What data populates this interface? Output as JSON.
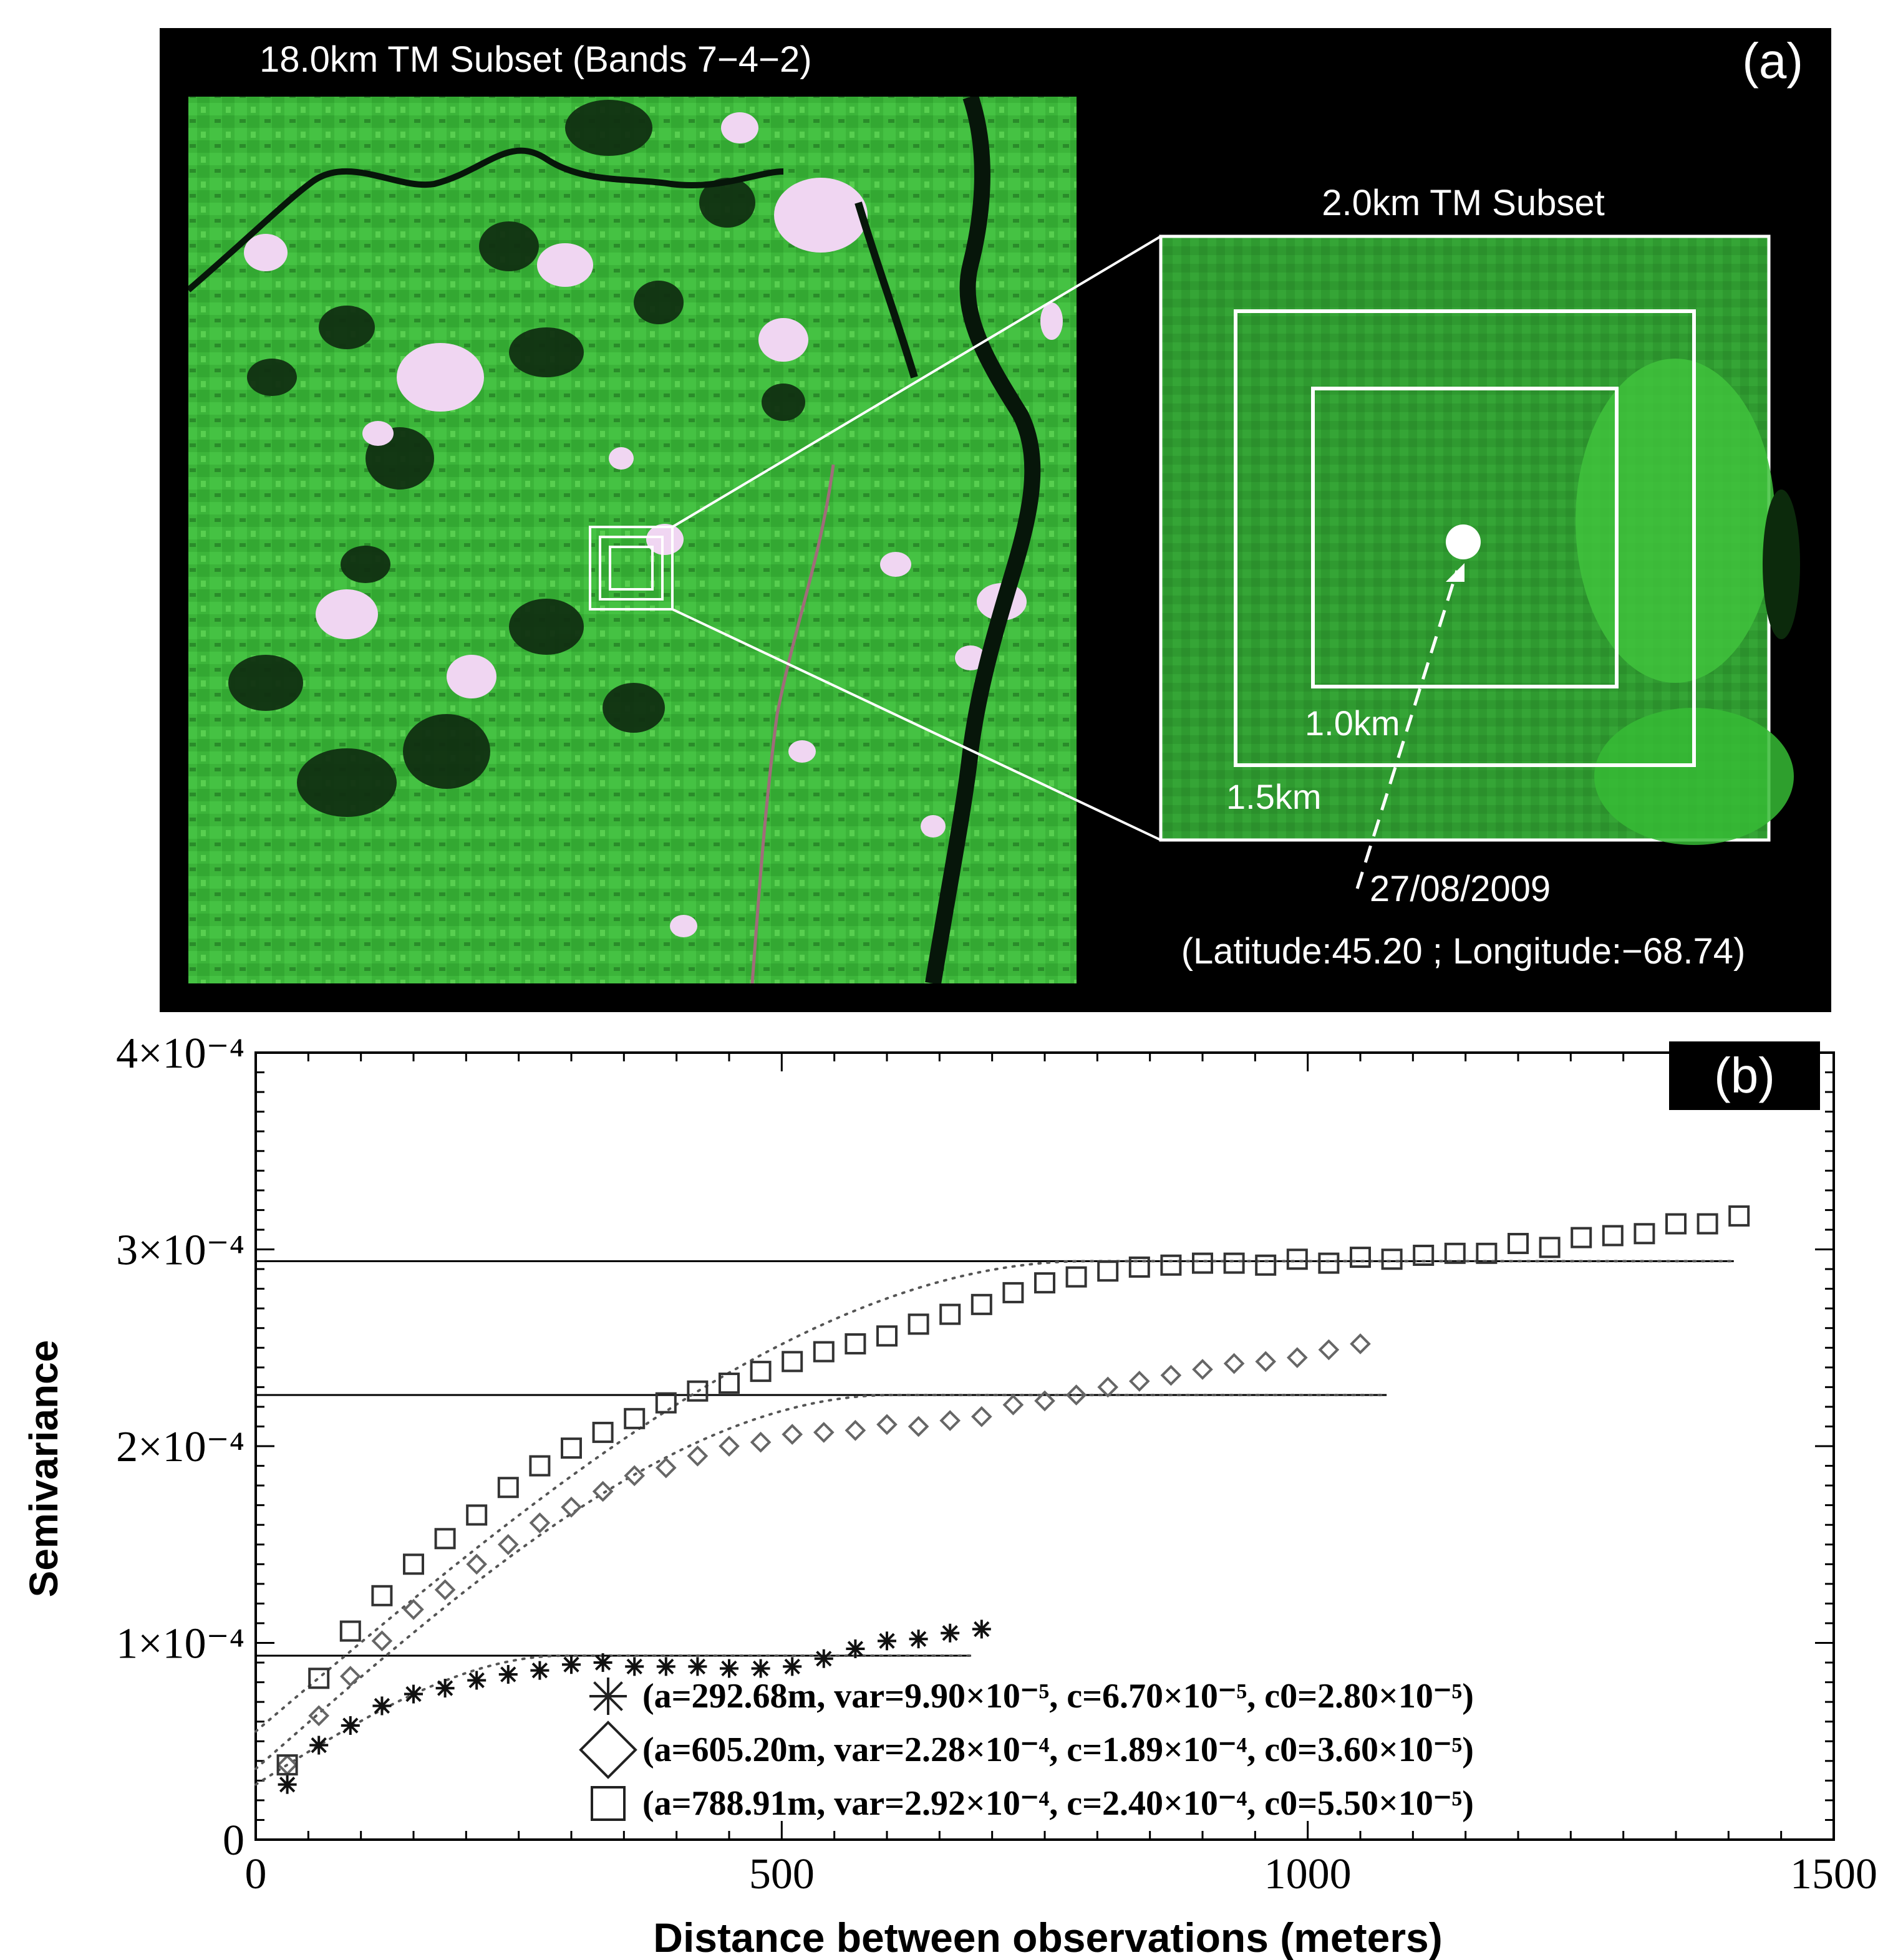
{
  "panel_a": {
    "tag": "(a)",
    "left_title": "18.0km TM Subset (Bands 7−4−2)",
    "right_title": "2.0km TM Subset",
    "inner_label": "1.0km",
    "outer_label": "1.5km",
    "date": "27/08/2009",
    "coords": "(Latitude:45.20 ; Longitude:−68.74)",
    "colors": {
      "vegetation": "#3fbf3a",
      "dark_forest": "#0e2a0e",
      "cloud": "#f2d8f2",
      "frame": "#ffffff"
    }
  },
  "chart_data": {
    "type": "scatter",
    "tag": "(b)",
    "xlabel": "Distance between observations (meters)",
    "ylabel": "Semivariance",
    "xlim": [
      0,
      1500
    ],
    "ylim": [
      0,
      0.0004
    ],
    "x_ticks": [
      {
        "value": 0,
        "label": "0"
      },
      {
        "value": 500,
        "label": "500"
      },
      {
        "value": 1000,
        "label": "1000"
      },
      {
        "value": 1500,
        "label": "1500"
      }
    ],
    "y_ticks": [
      {
        "value": 0,
        "label": "0"
      },
      {
        "value": 0.0001,
        "label": "1×10⁻⁴"
      },
      {
        "value": 0.0002,
        "label": "2×10⁻⁴"
      },
      {
        "value": 0.0003,
        "label": "3×10⁻⁴"
      },
      {
        "value": 0.0004,
        "label": "4×10⁻⁴"
      }
    ],
    "series": [
      {
        "marker": "asterisk",
        "legend": "(a=292.68m, var=9.90×10⁻⁵, c=6.70×10⁻⁵, c0=2.80×10⁻⁵)",
        "model": {
          "range": 292.68,
          "sill": 9.35e-05,
          "nugget": 2.8e-05,
          "x_max": 680
        },
        "x": [
          30,
          60,
          90,
          120,
          150,
          180,
          210,
          240,
          270,
          300,
          330,
          360,
          390,
          420,
          450,
          480,
          510,
          540,
          570,
          600,
          630,
          660,
          690
        ],
        "y": [
          2.8e-05,
          4.8e-05,
          5.8e-05,
          6.8e-05,
          7.4e-05,
          7.7e-05,
          8.1e-05,
          8.4e-05,
          8.6e-05,
          8.9e-05,
          9e-05,
          8.8e-05,
          8.8e-05,
          8.8e-05,
          8.7e-05,
          8.7e-05,
          8.8e-05,
          9.2e-05,
          9.7e-05,
          0.000101,
          0.000102,
          0.000105,
          0.000107
        ]
      },
      {
        "marker": "diamond",
        "legend": "(a=605.20m, var=2.28×10⁻⁴, c=1.89×10⁻⁴, c0=3.60×10⁻⁵)",
        "model": {
          "range": 605.2,
          "sill": 0.000226,
          "nugget": 3.6e-05,
          "x_max": 1075
        },
        "x": [
          30,
          60,
          90,
          120,
          150,
          180,
          210,
          240,
          270,
          300,
          330,
          360,
          390,
          420,
          450,
          480,
          510,
          540,
          570,
          600,
          630,
          660,
          690,
          720,
          750,
          780,
          810,
          840,
          870,
          900,
          930,
          960,
          990,
          1020,
          1050
        ],
        "y": [
          3.8e-05,
          6.3e-05,
          8.3e-05,
          0.000101,
          0.000117,
          0.000127,
          0.00014,
          0.00015,
          0.000161,
          0.000169,
          0.000177,
          0.000185,
          0.000189,
          0.000195,
          0.0002,
          0.000202,
          0.000206,
          0.000207,
          0.000208,
          0.000211,
          0.00021,
          0.000213,
          0.000215,
          0.000221,
          0.000223,
          0.000226,
          0.00023,
          0.000233,
          0.000236,
          0.000239,
          0.000242,
          0.000243,
          0.000245,
          0.000249,
          0.000252
        ]
      },
      {
        "marker": "square",
        "legend": "(a=788.91m, var=2.92×10⁻⁴, c=2.40×10⁻⁴, c0=5.50×10⁻⁵)",
        "model": {
          "range": 788.91,
          "sill": 0.000294,
          "nugget": 5.5e-05,
          "x_max": 1405
        },
        "x": [
          30,
          60,
          90,
          120,
          150,
          180,
          210,
          240,
          270,
          300,
          330,
          360,
          390,
          420,
          450,
          480,
          510,
          540,
          570,
          600,
          630,
          660,
          690,
          720,
          750,
          780,
          810,
          840,
          870,
          900,
          930,
          960,
          990,
          1020,
          1050,
          1080,
          1110,
          1140,
          1170,
          1200,
          1230,
          1260,
          1290,
          1320,
          1350,
          1380,
          1410
        ],
        "y": [
          3.8e-05,
          8.2e-05,
          0.000106,
          0.000124,
          0.00014,
          0.000153,
          0.000165,
          0.000179,
          0.00019,
          0.000199,
          0.000207,
          0.000214,
          0.000222,
          0.000228,
          0.000232,
          0.000238,
          0.000243,
          0.000248,
          0.000252,
          0.000256,
          0.000262,
          0.000267,
          0.000272,
          0.000278,
          0.000283,
          0.000286,
          0.000289,
          0.000291,
          0.000292,
          0.000293,
          0.000293,
          0.000292,
          0.000295,
          0.000293,
          0.000296,
          0.000295,
          0.000297,
          0.000298,
          0.000298,
          0.000303,
          0.000301,
          0.000306,
          0.000307,
          0.000308,
          0.000313,
          0.000313,
          0.000317
        ]
      }
    ]
  }
}
